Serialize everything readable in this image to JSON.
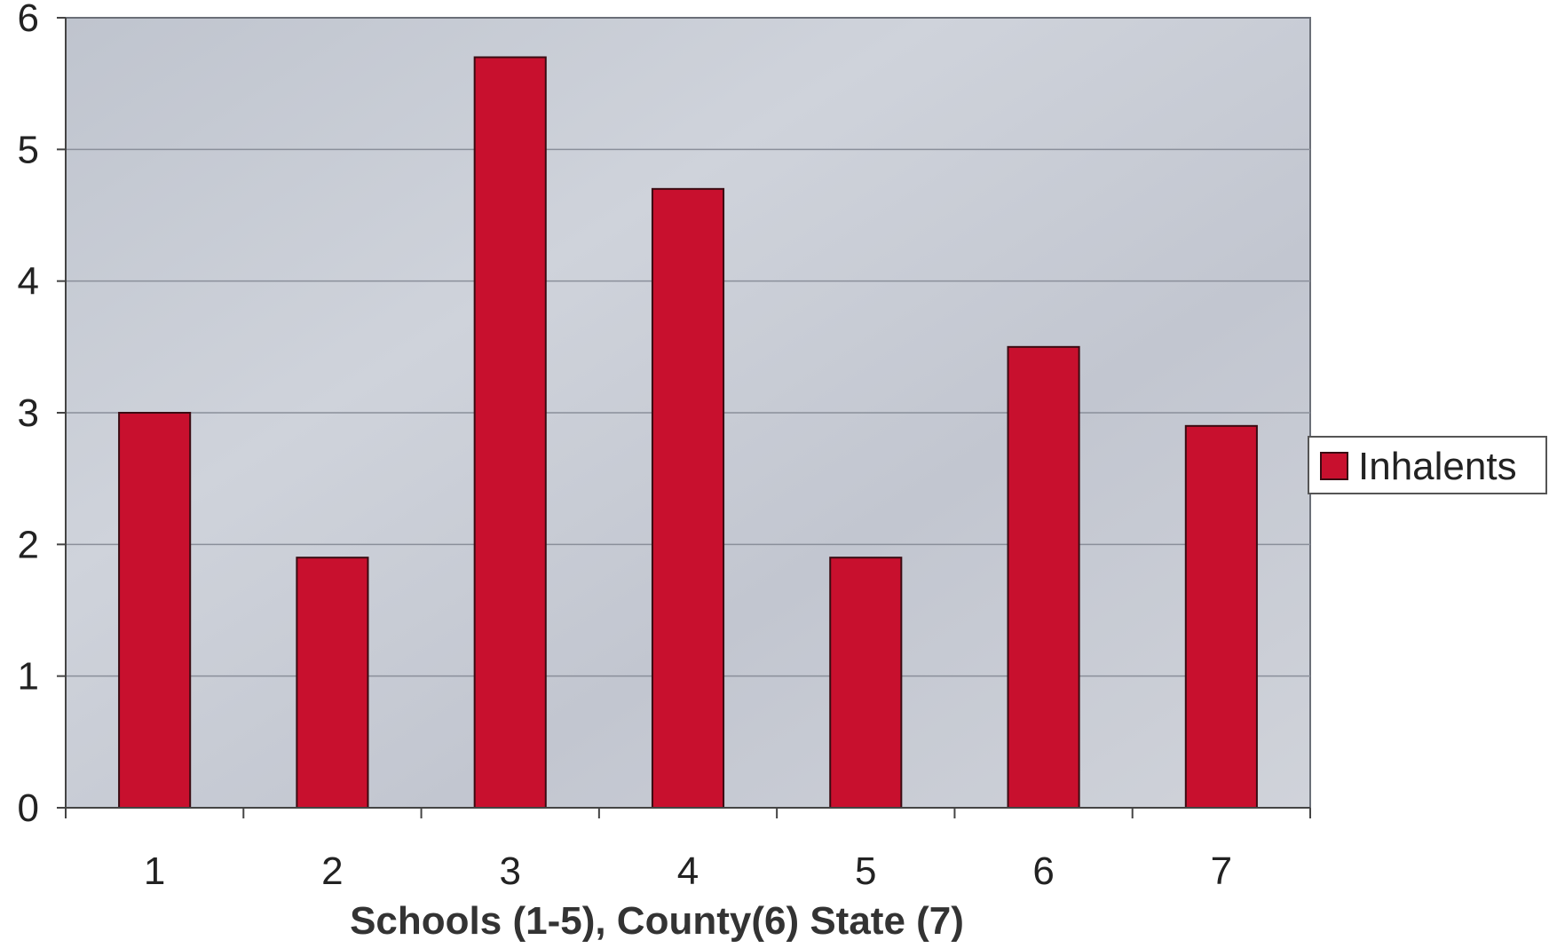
{
  "chart_data": {
    "type": "bar",
    "categories": [
      "1",
      "2",
      "3",
      "4",
      "5",
      "6",
      "7"
    ],
    "series": [
      {
        "name": "Inhalents",
        "values": [
          3.0,
          1.9,
          5.7,
          4.7,
          1.9,
          3.5,
          2.9
        ]
      }
    ],
    "xlabel": "Schools (1-5), County(6) State (7)",
    "ylim": [
      0,
      6
    ],
    "yticks": [
      "0",
      "1",
      "2",
      "3",
      "4",
      "5",
      "6"
    ],
    "grid": true,
    "legend_position": "right",
    "colors": {
      "bar": "#c8102e",
      "bar_edge": "#3a0b12",
      "plot_bg": "#c4c8d2",
      "gridline": "#8a8f9a"
    }
  }
}
